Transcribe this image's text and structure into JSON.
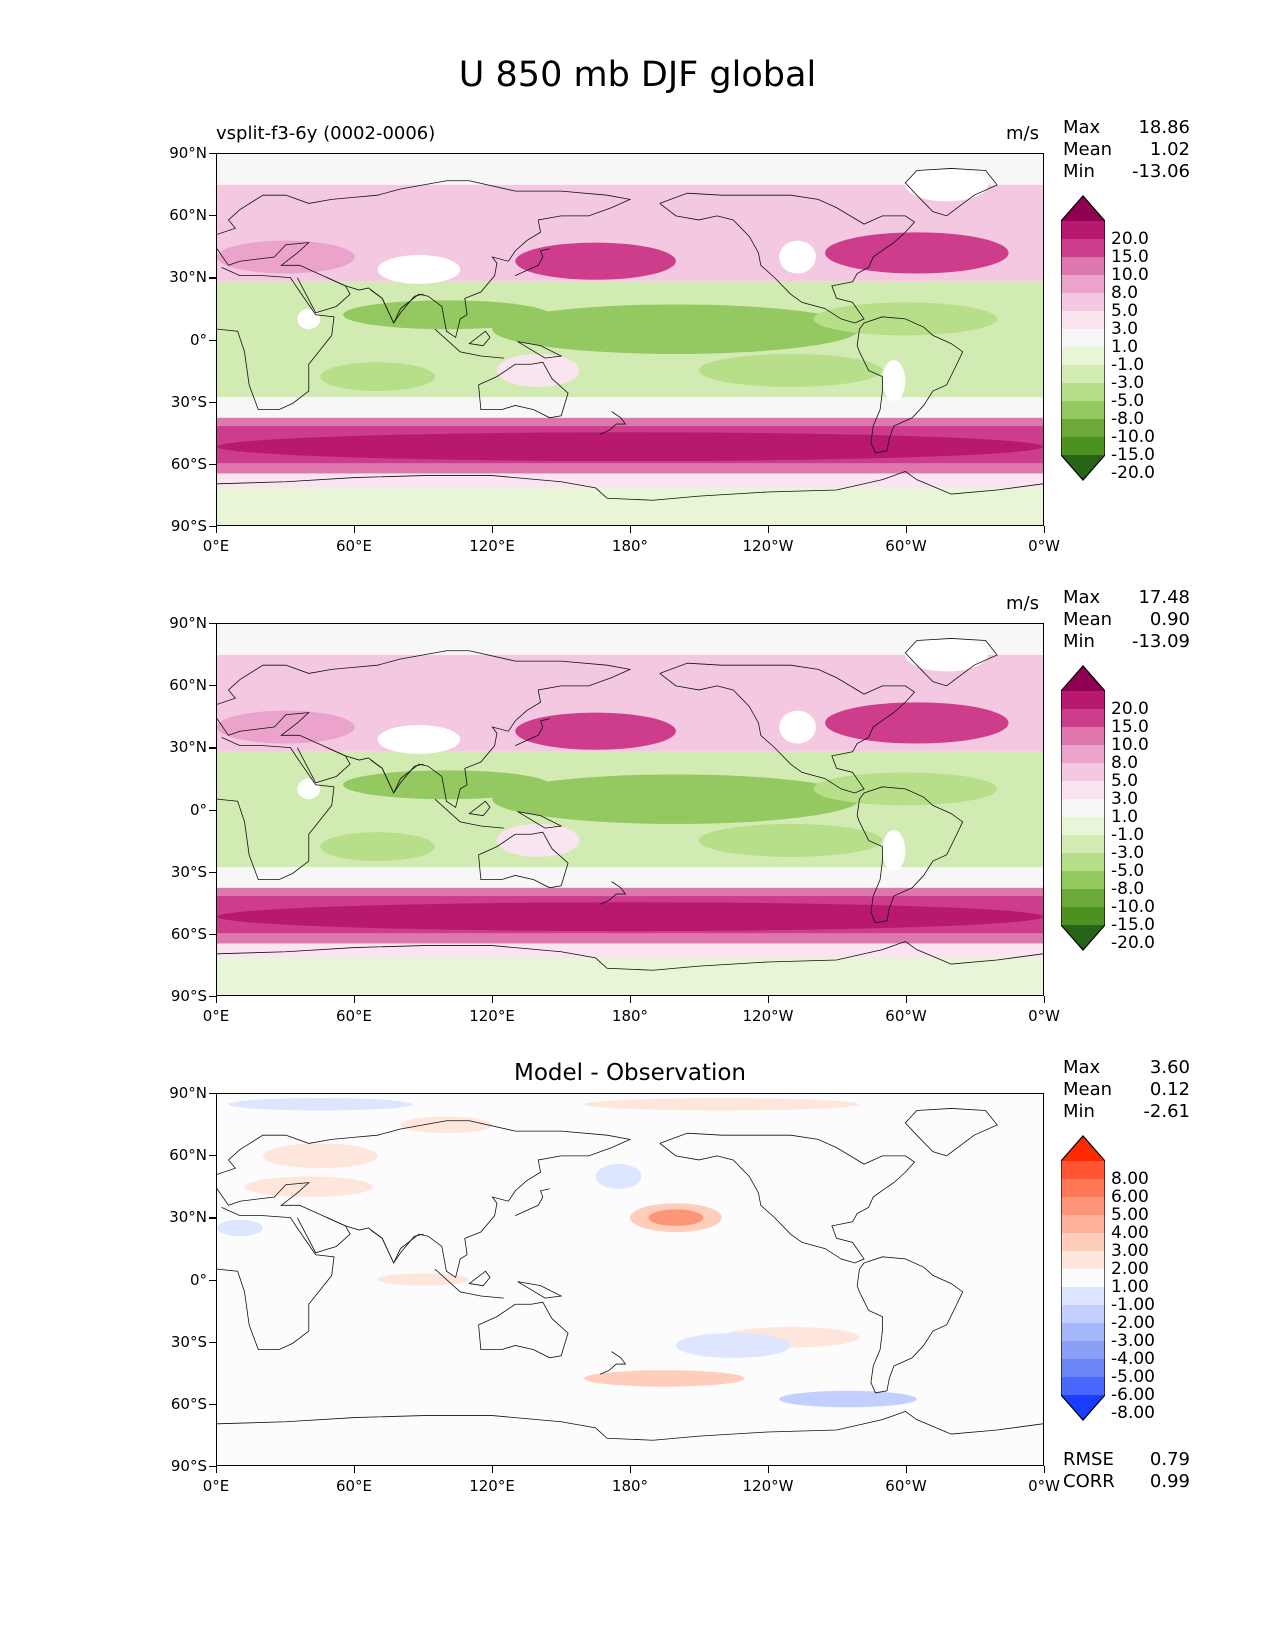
{
  "figure": {
    "title": "U 850 mb DJF global"
  },
  "axes": {
    "lat_labels": [
      "90°N",
      "60°N",
      "30°N",
      "0°",
      "30°S",
      "60°S",
      "90°S"
    ],
    "lon_labels": [
      "0°E",
      "60°E",
      "120°E",
      "180°",
      "120°W",
      "60°W",
      "0°W"
    ]
  },
  "panels": [
    {
      "title_left": "vsplit-f3-6y (0002-0006)",
      "title_center": "",
      "units": "m/s",
      "stats": {
        "max_label": "Max",
        "max": "18.86",
        "mean_label": "Mean",
        "mean": "1.02",
        "min_label": "Min",
        "min": "-13.06"
      },
      "colorbar": {
        "labels": [
          "20.0",
          "15.0",
          "10.0",
          "8.0",
          "5.0",
          "3.0",
          "1.0",
          "-1.0",
          "-3.0",
          "-5.0",
          "-8.0",
          "-10.0",
          "-15.0",
          "-20.0"
        ],
        "colors": [
          "#8e0152",
          "#b8196e",
          "#cd3d8b",
          "#de77ae",
          "#eba3cc",
          "#f5c8e2",
          "#fae4f0",
          "#f7f7f7",
          "#e8f5d6",
          "#d2ebb3",
          "#b7df8a",
          "#94c860",
          "#6ca83a",
          "#4d9221",
          "#276419"
        ]
      }
    },
    {
      "title_left": "",
      "title_center": "",
      "units": "m/s",
      "stats": {
        "max_label": "Max",
        "max": "17.48",
        "mean_label": "Mean",
        "mean": "0.90",
        "min_label": "Min",
        "min": "-13.09"
      },
      "colorbar": {
        "labels": [
          "20.0",
          "15.0",
          "10.0",
          "8.0",
          "5.0",
          "3.0",
          "1.0",
          "-1.0",
          "-3.0",
          "-5.0",
          "-8.0",
          "-10.0",
          "-15.0",
          "-20.0"
        ],
        "colors": [
          "#8e0152",
          "#b8196e",
          "#cd3d8b",
          "#de77ae",
          "#eba3cc",
          "#f5c8e2",
          "#fae4f0",
          "#f7f7f7",
          "#e8f5d6",
          "#d2ebb3",
          "#b7df8a",
          "#94c860",
          "#6ca83a",
          "#4d9221",
          "#276419"
        ]
      }
    },
    {
      "title_left": "",
      "title_center": "Model - Observation",
      "units": "",
      "stats": {
        "max_label": "Max",
        "max": "3.60",
        "mean_label": "Mean",
        "mean": "0.12",
        "min_label": "Min",
        "min": "-2.61"
      },
      "colorbar": {
        "labels": [
          "8.00",
          "6.00",
          "5.00",
          "4.00",
          "3.00",
          "2.00",
          "1.00",
          "-1.00",
          "-2.00",
          "-3.00",
          "-4.00",
          "-5.00",
          "-6.00",
          "-8.00"
        ],
        "colors": [
          "#ff2a00",
          "#ff5533",
          "#ff7755",
          "#ff9577",
          "#ffb299",
          "#ffcebb",
          "#ffe6dd",
          "#fcfcfc",
          "#dde5ff",
          "#c3d0ff",
          "#a6b8fb",
          "#8aa0f7",
          "#6a86f7",
          "#4a68fb",
          "#1a3cff"
        ]
      },
      "metrics": {
        "rmse_label": "RMSE",
        "rmse": "0.79",
        "corr_label": "CORR",
        "corr": "0.99"
      }
    }
  ]
}
